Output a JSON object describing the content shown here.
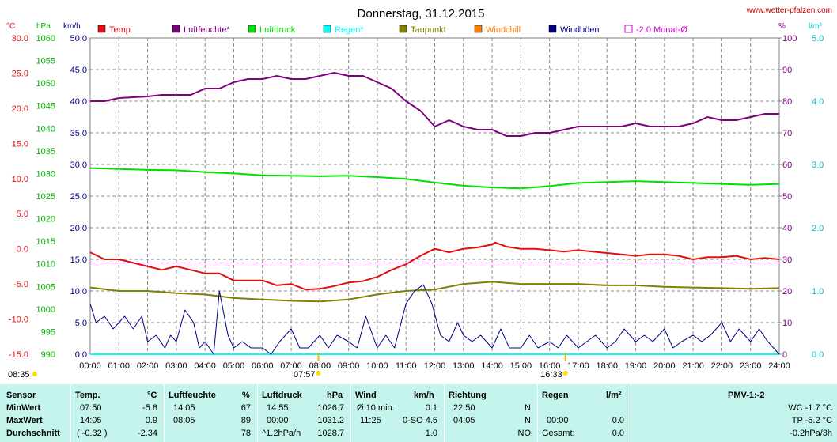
{
  "title": "Donnerstag, 31.12.2015",
  "site": "www.wetter-pfalzen.com",
  "units": {
    "temp": "°C",
    "press": "hPa",
    "wind": "km/h",
    "hum": "%",
    "rain": "l/m²"
  },
  "legend": [
    {
      "label": "Temp.",
      "color": "#e01010",
      "shape": "filled"
    },
    {
      "label": "Luftfeuchte*",
      "color": "#800080",
      "shape": "filled"
    },
    {
      "label": "Luftdruck",
      "color": "#00e000",
      "shape": "filled"
    },
    {
      "label": "Regen*",
      "color": "#00ffff",
      "shape": "filled"
    },
    {
      "label": "Taupunkt",
      "color": "#808000",
      "shape": "filled"
    },
    {
      "label": "Windchill",
      "color": "#ff8000",
      "shape": "filled"
    },
    {
      "label": "Windböen",
      "color": "#000080",
      "shape": "filled"
    },
    {
      "label": "-2.0 Monat-Ø",
      "color": "#d000d0",
      "shape": "hollow"
    }
  ],
  "axes": {
    "temp_ticks": [
      "30.0",
      "25.0",
      "20.0",
      "15.0",
      "10.0",
      "5.0",
      "0.0",
      "-5.0",
      "-10.0",
      "-15.0"
    ],
    "press_ticks": [
      "1060",
      "1055",
      "1050",
      "1045",
      "1040",
      "1035",
      "1030",
      "1025",
      "1020",
      "1015",
      "1010",
      "1005",
      "1000",
      "995",
      "990"
    ],
    "wind_ticks": [
      "50.0",
      "45.0",
      "40.0",
      "35.0",
      "30.0",
      "25.0",
      "20.0",
      "15.0",
      "10.0",
      "5.0",
      "0.0"
    ],
    "hum_ticks": [
      "100",
      "90",
      "80",
      "70",
      "60",
      "50",
      "40",
      "30",
      "20",
      "10",
      "0"
    ],
    "rain_ticks": [
      "5.0",
      "4.0",
      "3.0",
      "2.0",
      "1.0",
      "0.0"
    ],
    "time_ticks": [
      "00:00",
      "01:00",
      "02:00",
      "03:00",
      "04:00",
      "05:00",
      "06:00",
      "07:00",
      "08:00",
      "09:00",
      "10:00",
      "11:00",
      "12:00",
      "13:00",
      "14:00",
      "15:00",
      "16:00",
      "17:00",
      "18:00",
      "19:00",
      "20:00",
      "21:00",
      "22:00",
      "23:00",
      "24:00"
    ]
  },
  "markers": {
    "sunrise": "07:57",
    "sunset": "16:33",
    "daylength": "08:35"
  },
  "chart_data": {
    "type": "line",
    "title": "Donnerstag, 31.12.2015",
    "x_unit": "hour of day",
    "xlim": [
      0,
      24
    ],
    "ylim_temp": [
      -15,
      30
    ],
    "ylim_hum": [
      0,
      100
    ],
    "ylim_press": [
      990,
      1060
    ],
    "ylim_wind": [
      0,
      50
    ],
    "ylim_rain": [
      0,
      5
    ],
    "reference_line": {
      "name": "-2.0 Monat-Ø",
      "axis": "temp",
      "value": -2.0
    },
    "series": [
      {
        "name": "Luftfeuchte*",
        "axis": "hum",
        "color": "#800080",
        "points": [
          [
            0,
            80
          ],
          [
            0.5,
            80
          ],
          [
            1,
            81
          ],
          [
            2,
            81.5
          ],
          [
            2.5,
            82
          ],
          [
            3,
            82
          ],
          [
            3.5,
            82
          ],
          [
            4,
            84
          ],
          [
            4.5,
            84
          ],
          [
            5,
            86
          ],
          [
            5.5,
            87
          ],
          [
            6,
            87
          ],
          [
            6.5,
            88
          ],
          [
            7,
            87
          ],
          [
            7.5,
            87
          ],
          [
            8,
            88
          ],
          [
            8.5,
            89
          ],
          [
            9,
            88
          ],
          [
            9.5,
            88
          ],
          [
            10,
            86
          ],
          [
            10.5,
            84
          ],
          [
            11,
            80
          ],
          [
            11.5,
            77
          ],
          [
            12,
            72
          ],
          [
            12.5,
            74
          ],
          [
            13,
            72
          ],
          [
            13.5,
            71
          ],
          [
            14,
            71
          ],
          [
            14.5,
            69
          ],
          [
            15,
            69
          ],
          [
            15.5,
            70
          ],
          [
            16,
            70
          ],
          [
            16.5,
            71
          ],
          [
            17,
            72
          ],
          [
            17.5,
            72
          ],
          [
            18,
            72
          ],
          [
            18.5,
            72
          ],
          [
            19,
            73
          ],
          [
            19.5,
            72
          ],
          [
            20,
            72
          ],
          [
            20.5,
            72
          ],
          [
            21,
            73
          ],
          [
            21.5,
            75
          ],
          [
            22,
            74
          ],
          [
            22.5,
            74
          ],
          [
            23,
            75
          ],
          [
            23.5,
            76
          ],
          [
            24,
            76
          ]
        ]
      },
      {
        "name": "Luftdruck",
        "axis": "press",
        "color": "#00e000",
        "points": [
          [
            0,
            1031.2
          ],
          [
            1,
            1031
          ],
          [
            2,
            1030.8
          ],
          [
            3,
            1030.7
          ],
          [
            4,
            1030.3
          ],
          [
            5,
            1030
          ],
          [
            6,
            1029.6
          ],
          [
            7,
            1029.5
          ],
          [
            8,
            1029.4
          ],
          [
            9,
            1029.5
          ],
          [
            10,
            1029.2
          ],
          [
            11,
            1028.8
          ],
          [
            12,
            1028
          ],
          [
            13,
            1027.3
          ],
          [
            14,
            1026.9
          ],
          [
            15,
            1026.7
          ],
          [
            16,
            1027.2
          ],
          [
            17,
            1027.9
          ],
          [
            18,
            1028.1
          ],
          [
            19,
            1028.3
          ],
          [
            20,
            1028.1
          ],
          [
            21,
            1027.9
          ],
          [
            22,
            1027.7
          ],
          [
            23,
            1027.5
          ],
          [
            24,
            1027.7
          ]
        ]
      },
      {
        "name": "Temp.",
        "axis": "temp",
        "color": "#e01010",
        "points": [
          [
            0,
            -0.5
          ],
          [
            0.5,
            -1.5
          ],
          [
            1,
            -1.5
          ],
          [
            1.5,
            -2
          ],
          [
            2,
            -2.5
          ],
          [
            2.5,
            -3
          ],
          [
            3,
            -2.5
          ],
          [
            3.5,
            -3
          ],
          [
            4,
            -3.5
          ],
          [
            4.5,
            -3.5
          ],
          [
            5,
            -4.5
          ],
          [
            5.5,
            -4.5
          ],
          [
            6,
            -4.5
          ],
          [
            6.5,
            -5.2
          ],
          [
            7,
            -5
          ],
          [
            7.5,
            -5.8
          ],
          [
            8,
            -5.7
          ],
          [
            8.5,
            -5.3
          ],
          [
            9,
            -4.8
          ],
          [
            9.5,
            -4.6
          ],
          [
            10,
            -4
          ],
          [
            10.5,
            -3
          ],
          [
            11,
            -2.2
          ],
          [
            11.5,
            -1
          ],
          [
            12,
            0
          ],
          [
            12.5,
            -0.5
          ],
          [
            13,
            0
          ],
          [
            13.5,
            0.2
          ],
          [
            14,
            0.6
          ],
          [
            14.1,
            0.9
          ],
          [
            14.5,
            0.3
          ],
          [
            15,
            0
          ],
          [
            15.5,
            0
          ],
          [
            16,
            -0.2
          ],
          [
            16.5,
            -0.4
          ],
          [
            17,
            -0.2
          ],
          [
            17.5,
            -0.4
          ],
          [
            18,
            -0.6
          ],
          [
            18.5,
            -0.8
          ],
          [
            19,
            -1
          ],
          [
            19.5,
            -0.8
          ],
          [
            20,
            -0.8
          ],
          [
            20.5,
            -1
          ],
          [
            21,
            -1.5
          ],
          [
            21.5,
            -1.2
          ],
          [
            22,
            -1.2
          ],
          [
            22.5,
            -1
          ],
          [
            23,
            -1.5
          ],
          [
            23.5,
            -1.3
          ],
          [
            24,
            -1.5
          ]
        ]
      },
      {
        "name": "Taupunkt",
        "axis": "temp",
        "color": "#808000",
        "points": [
          [
            0,
            -5.5
          ],
          [
            1,
            -6
          ],
          [
            2,
            -6
          ],
          [
            3,
            -6.3
          ],
          [
            4,
            -6.5
          ],
          [
            5,
            -7
          ],
          [
            6,
            -7.2
          ],
          [
            7,
            -7.4
          ],
          [
            8,
            -7.5
          ],
          [
            9,
            -7.2
          ],
          [
            10,
            -6.5
          ],
          [
            11,
            -6
          ],
          [
            12,
            -5.8
          ],
          [
            13,
            -5
          ],
          [
            14,
            -4.7
          ],
          [
            15,
            -5
          ],
          [
            16,
            -5
          ],
          [
            17,
            -5
          ],
          [
            18,
            -5.2
          ],
          [
            19,
            -5.2
          ],
          [
            20,
            -5.4
          ],
          [
            21,
            -5.5
          ],
          [
            22,
            -5.6
          ],
          [
            23,
            -5.7
          ],
          [
            24,
            -5.6
          ]
        ]
      },
      {
        "name": "Windböen",
        "axis": "wind",
        "color": "#000080",
        "points": [
          [
            0,
            8
          ],
          [
            0.2,
            5
          ],
          [
            0.5,
            6
          ],
          [
            0.8,
            4
          ],
          [
            1,
            5
          ],
          [
            1.2,
            6
          ],
          [
            1.5,
            4
          ],
          [
            1.8,
            6
          ],
          [
            2,
            2
          ],
          [
            2.3,
            3
          ],
          [
            2.6,
            1
          ],
          [
            2.8,
            3
          ],
          [
            3,
            2
          ],
          [
            3.3,
            7
          ],
          [
            3.6,
            5
          ],
          [
            3.8,
            1
          ],
          [
            4,
            2
          ],
          [
            4.3,
            0
          ],
          [
            4.5,
            10
          ],
          [
            4.8,
            3
          ],
          [
            5,
            1
          ],
          [
            5.3,
            2
          ],
          [
            5.6,
            1
          ],
          [
            6,
            1
          ],
          [
            6.3,
            0
          ],
          [
            6.6,
            2
          ],
          [
            7,
            4
          ],
          [
            7.3,
            1
          ],
          [
            7.6,
            1
          ],
          [
            8,
            3
          ],
          [
            8.3,
            1
          ],
          [
            8.6,
            3
          ],
          [
            9,
            2
          ],
          [
            9.3,
            1
          ],
          [
            9.6,
            6
          ],
          [
            10,
            1
          ],
          [
            10.3,
            3
          ],
          [
            10.6,
            1
          ],
          [
            11,
            8
          ],
          [
            11.3,
            10
          ],
          [
            11.6,
            11
          ],
          [
            11.9,
            8
          ],
          [
            12.2,
            3
          ],
          [
            12.5,
            2
          ],
          [
            12.8,
            5
          ],
          [
            13,
            3
          ],
          [
            13.3,
            2
          ],
          [
            13.6,
            3
          ],
          [
            14,
            1
          ],
          [
            14.3,
            4
          ],
          [
            14.6,
            1
          ],
          [
            15,
            1
          ],
          [
            15.3,
            3
          ],
          [
            15.6,
            1
          ],
          [
            16,
            2
          ],
          [
            16.3,
            1
          ],
          [
            16.6,
            3
          ],
          [
            17,
            1
          ],
          [
            17.3,
            2
          ],
          [
            17.6,
            3
          ],
          [
            18,
            1
          ],
          [
            18.3,
            2
          ],
          [
            18.6,
            4
          ],
          [
            19,
            2
          ],
          [
            19.3,
            3
          ],
          [
            19.6,
            2
          ],
          [
            20,
            4
          ],
          [
            20.3,
            1
          ],
          [
            20.6,
            2
          ],
          [
            21,
            3
          ],
          [
            21.3,
            2
          ],
          [
            21.6,
            3
          ],
          [
            22,
            5
          ],
          [
            22.3,
            2
          ],
          [
            22.6,
            4
          ],
          [
            23,
            2
          ],
          [
            23.3,
            4
          ],
          [
            23.6,
            2
          ],
          [
            24,
            0
          ]
        ]
      },
      {
        "name": "Regen*",
        "axis": "rain",
        "color": "#00ffff",
        "points": [
          [
            0,
            0
          ],
          [
            24,
            0
          ]
        ]
      }
    ]
  },
  "stats": {
    "headers": {
      "sensor": "Sensor",
      "temp": "Temp.",
      "temp_u": "°C",
      "hum": "Luftfeuchte",
      "hum_u": "%",
      "press": "Luftdruck",
      "press_u": "hPa",
      "wind": "Wind",
      "wind_u": "km/h",
      "dir": "Richtung",
      "rain": "Regen",
      "rain_u": "l/m²",
      "pmv": "PMV-1:-2"
    },
    "rows": [
      {
        "label": "MinWert",
        "temp_time": "07:50",
        "temp_val": "-5.8",
        "hum_time": "14:05",
        "hum_val": "67",
        "press_time": "14:55",
        "press_val": "1026.7",
        "wind_time": "Ø 10 min.",
        "wind_val": "0.1",
        "dir_time": "22:50",
        "dir_val": "N",
        "rain_time": "",
        "rain_val": "",
        "pmv": "WC -1.7 °C"
      },
      {
        "label": "MaxWert",
        "temp_time": "14:05",
        "temp_val": "0.9",
        "hum_time": "08:05",
        "hum_val": "89",
        "press_time": "00:00",
        "press_val": "1031.2",
        "wind_time": "11:25",
        "wind_mid": "0-SO 4.5",
        "wind_val": "",
        "dir_time": "04:05",
        "dir_val": "N",
        "rain_time": "00:00",
        "rain_val": "0.0",
        "pmv": "TP -5.2 °C"
      },
      {
        "label": "Durchschnitt",
        "temp_time": "( -0.32 )",
        "temp_val": "-2.34",
        "hum_time": "",
        "hum_val": "78",
        "press_time": "^1.2hPa/h",
        "press_val": "1028.7",
        "wind_time": "",
        "wind_val": "1.0",
        "dir_time": "",
        "dir_val": "NO",
        "rain_time": "Gesamt:",
        "rain_val": "0.0",
        "pmv": "-0.2hPa/3h"
      }
    ]
  }
}
